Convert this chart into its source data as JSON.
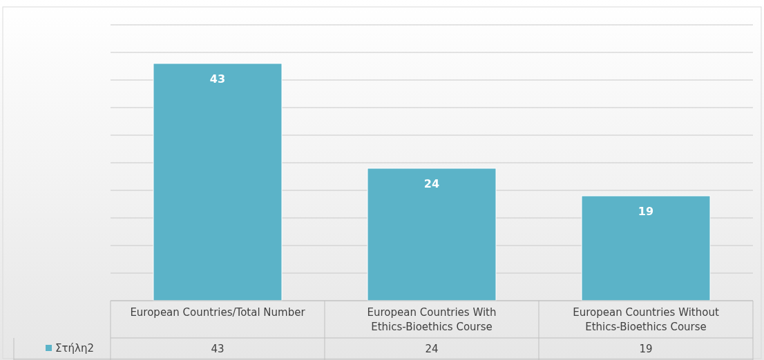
{
  "chart_data": {
    "type": "bar",
    "categories": [
      "European Countries/Total Number",
      "European Countries With Ethics-Bioethics Course",
      "European Countries Without Ethics-Bioethics Course"
    ],
    "series": [
      {
        "name": "Στήλη2",
        "color": "#5bb3c8",
        "values": [
          43,
          24,
          19
        ]
      }
    ],
    "ylim": [
      0,
      50
    ],
    "yticks": [
      {
        "value": 0,
        "label": null
      },
      {
        "value": 5,
        "label": null
      },
      {
        "value": 10,
        "label": null
      },
      {
        "value": 15,
        "label": null
      },
      {
        "value": 20,
        "label": null
      },
      {
        "value": 25,
        "label": null
      },
      {
        "value": 30,
        "label": null
      },
      {
        "value": 35,
        "label": null
      },
      {
        "value": 40,
        "label": null
      },
      {
        "value": 45,
        "label": null
      },
      {
        "value": 50,
        "label": null
      }
    ],
    "annotations": [
      "43",
      "24",
      "19"
    ],
    "tick_labels": "x",
    "grid": "y",
    "data_labels": true,
    "legend": "bottom left"
  }
}
